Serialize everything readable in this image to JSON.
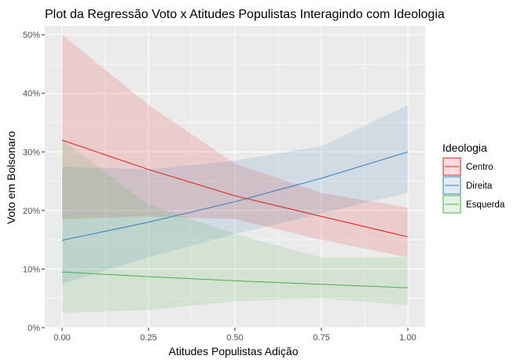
{
  "chart_data": {
    "type": "line",
    "title": "Plot da Regressão Voto x Atitudes Populistas Interagindo com Ideologia",
    "xlabel": "Atitudes Populistas Adição",
    "ylabel": "Voto em Bolsonaro",
    "xlim": [
      -0.05,
      1.05
    ],
    "ylim": [
      0,
      0.515
    ],
    "x_ticks": [
      0,
      0.25,
      0.5,
      0.75,
      1
    ],
    "x_tick_labels": [
      "0.00",
      "0.25",
      "0.50",
      "0.75",
      "1.00"
    ],
    "y_ticks": [
      0,
      0.1,
      0.2,
      0.3,
      0.4,
      0.5
    ],
    "y_tick_labels": [
      "0%",
      "10%",
      "20%",
      "30%",
      "40%",
      "50%"
    ],
    "grid": true,
    "legend": {
      "title": "Ideologia",
      "position": "right"
    },
    "series": [
      {
        "name": "Centro",
        "color": "#e41a1c",
        "x": [
          0,
          0.25,
          0.5,
          0.75,
          1
        ],
        "y": [
          0.32,
          0.27,
          0.225,
          0.19,
          0.155
        ],
        "lower": [
          0.185,
          0.19,
          0.185,
          0.15,
          0.12
        ],
        "upper": [
          0.5,
          0.38,
          0.28,
          0.23,
          0.205
        ]
      },
      {
        "name": "Direita",
        "color": "#377eb8",
        "x": [
          0,
          0.25,
          0.5,
          0.75,
          1
        ],
        "y": [
          0.149,
          0.18,
          0.215,
          0.255,
          0.3
        ],
        "lower": [
          0.075,
          0.12,
          0.16,
          0.195,
          0.23
        ],
        "upper": [
          0.275,
          0.27,
          0.285,
          0.31,
          0.38
        ]
      },
      {
        "name": "Esquerda",
        "color": "#4daf4a",
        "x": [
          0,
          0.25,
          0.5,
          0.75,
          1
        ],
        "y": [
          0.095,
          0.087,
          0.08,
          0.074,
          0.068
        ],
        "lower": [
          0.025,
          0.03,
          0.045,
          0.05,
          0.038
        ],
        "upper": [
          0.32,
          0.21,
          0.16,
          0.12,
          0.12
        ]
      }
    ]
  }
}
